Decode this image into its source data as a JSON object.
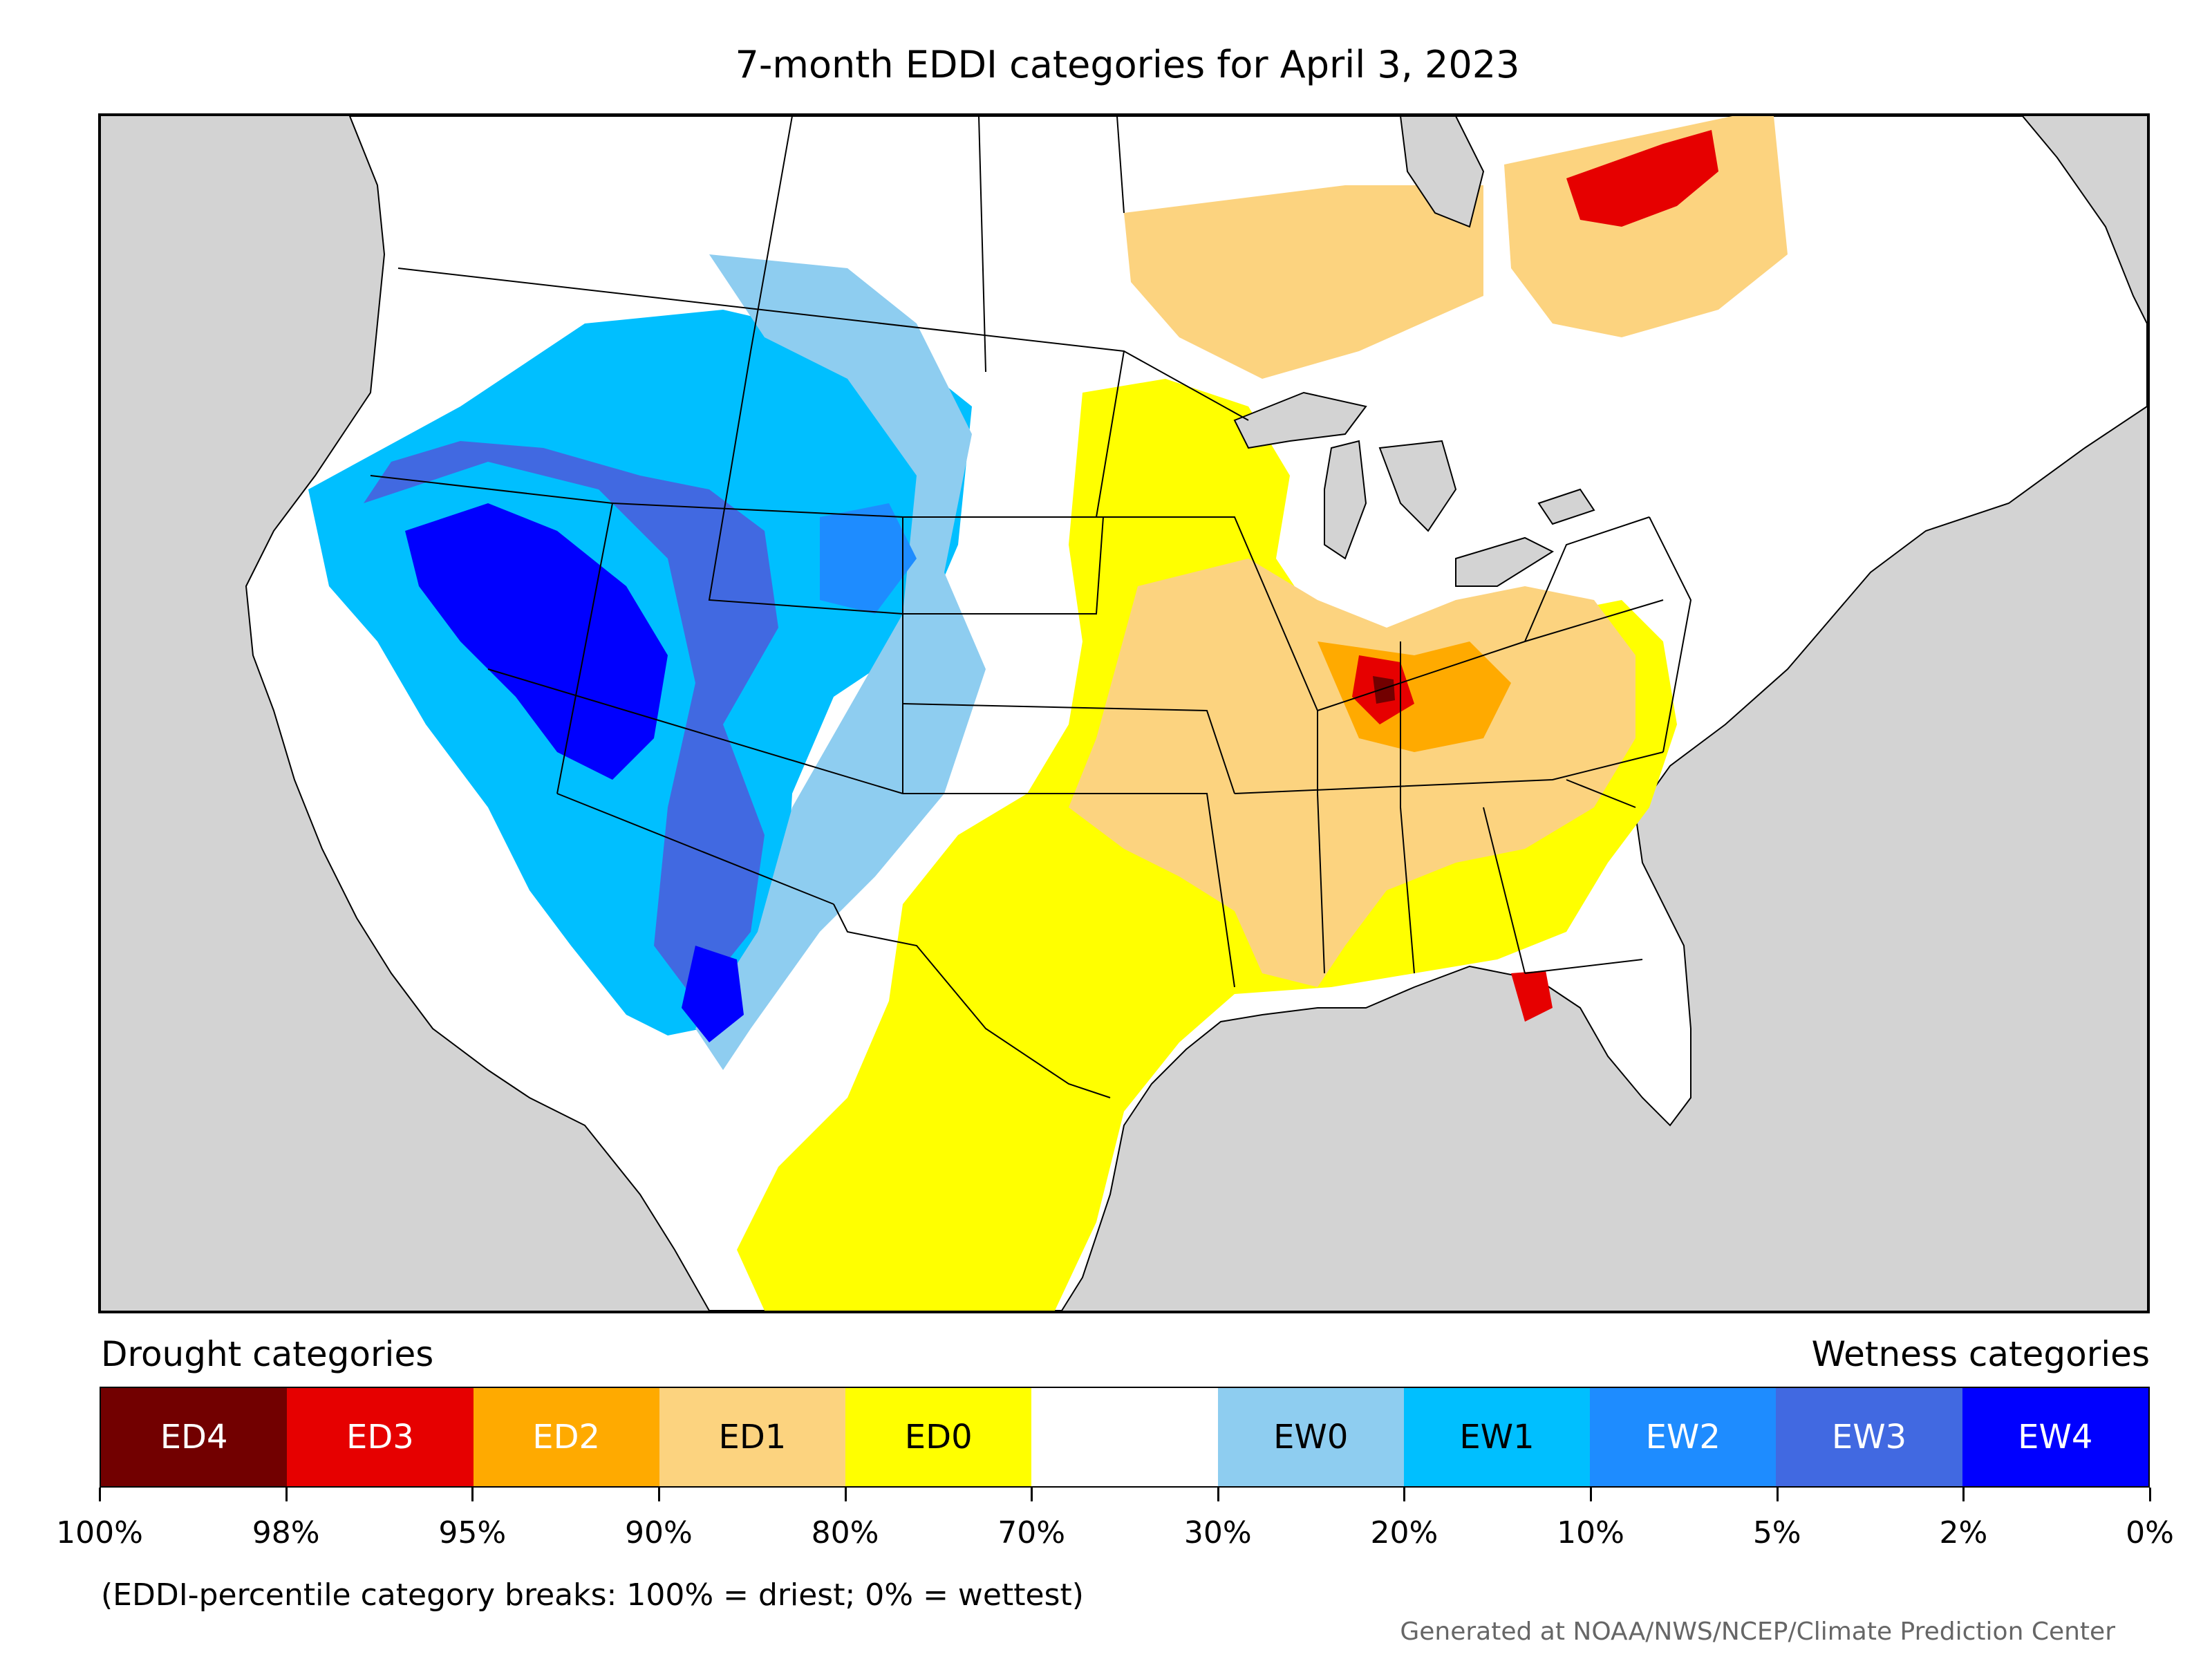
{
  "title": "7-month EDDI categories for April 3, 2023",
  "legend": {
    "drought_heading": "Drought categories",
    "wetness_heading": "Wetness categories",
    "categories": [
      {
        "label": "ED4",
        "color": "#720000",
        "text_color": "#ffffff"
      },
      {
        "label": "ED3",
        "color": "#e60000",
        "text_color": "#ffffff"
      },
      {
        "label": "ED2",
        "color": "#ffaa00",
        "text_color": "#ffffff"
      },
      {
        "label": "ED1",
        "color": "#fcd37f",
        "text_color": "#000000"
      },
      {
        "label": "ED0",
        "color": "#ffff00",
        "text_color": "#000000"
      },
      {
        "label": "",
        "color": "#ffffff",
        "text_color": "#000000"
      },
      {
        "label": "EW0",
        "color": "#8ecdf0",
        "text_color": "#000000"
      },
      {
        "label": "EW1",
        "color": "#00bfff",
        "text_color": "#000000"
      },
      {
        "label": "EW2",
        "color": "#1e8cff",
        "text_color": "#ffffff"
      },
      {
        "label": "EW3",
        "color": "#4169e1",
        "text_color": "#ffffff"
      },
      {
        "label": "EW4",
        "color": "#0000ff",
        "text_color": "#ffffff"
      }
    ],
    "tick_labels": [
      "100%",
      "98%",
      "95%",
      "90%",
      "80%",
      "70%",
      "30%",
      "20%",
      "10%",
      "5%",
      "2%",
      "0%"
    ]
  },
  "note": "(EDDI-percentile category breaks: 100% = driest; 0% = wettest)",
  "credit": "Generated at NOAA/NWS/NCEP/Climate Prediction Center",
  "map_colors": {
    "ocean": "#d3d3d3",
    "land": "#ffffff",
    "lakes": "#d3d3d3",
    "borders": "#000000"
  }
}
